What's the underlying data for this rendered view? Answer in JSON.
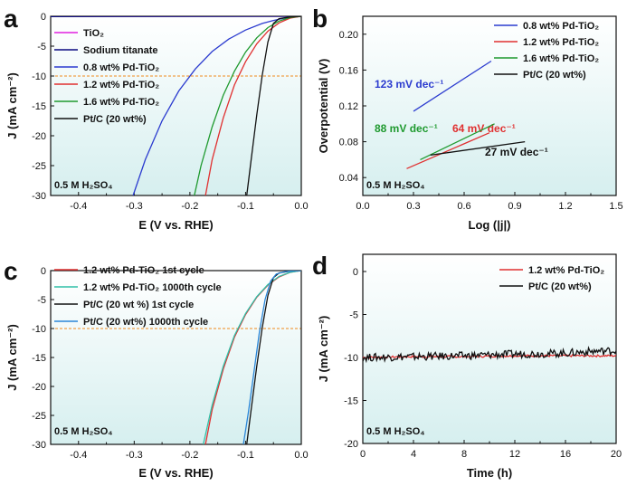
{
  "chart_data": [
    {
      "panel": "a",
      "type": "line",
      "xlabel": "E (V vs. RHE)",
      "ylabel": "J (mA cm⁻²)",
      "xlim": [
        -0.45,
        0.0
      ],
      "ylim": [
        -30,
        0
      ],
      "xticks": [
        "-0.4",
        "-0.3",
        "-0.2",
        "-0.1",
        "0.0"
      ],
      "yticks": [
        "0",
        "-5",
        "-10",
        "-15",
        "-20",
        "-25",
        "-30"
      ],
      "reference_line_y": -10,
      "annotation": "0.5 M H₂SO₄",
      "legend_position": "top-left",
      "series": [
        {
          "name": "TiO₂",
          "color": "#e020e0",
          "x": [
            -0.45,
            0.0
          ],
          "y": [
            -0.02,
            0.0
          ]
        },
        {
          "name": "Sodium titanate",
          "color": "#0a0a80",
          "x": [
            -0.45,
            0.0
          ],
          "y": [
            -0.04,
            0.0
          ]
        },
        {
          "name": "0.8 wt% Pd-TiO₂",
          "color": "#2b3bcf",
          "x": [
            -0.302,
            -0.28,
            -0.25,
            -0.22,
            -0.19,
            -0.16,
            -0.13,
            -0.1,
            -0.07,
            -0.05,
            -0.03,
            -0.01,
            0.0
          ],
          "y": [
            -30,
            -24,
            -17.5,
            -12.5,
            -8.8,
            -5.9,
            -3.8,
            -2.3,
            -1.2,
            -0.7,
            -0.3,
            -0.1,
            0.0
          ]
        },
        {
          "name": "1.2 wt% Pd-TiO₂",
          "color": "#e03030",
          "x": [
            -0.172,
            -0.16,
            -0.14,
            -0.12,
            -0.1,
            -0.08,
            -0.06,
            -0.04,
            -0.02,
            0.0
          ],
          "y": [
            -30,
            -24,
            -17,
            -11.5,
            -7.6,
            -4.6,
            -2.5,
            -1.1,
            -0.3,
            0.0
          ]
        },
        {
          "name": "1.6 wt% Pd-TiO₂",
          "color": "#1f9a2f",
          "x": [
            -0.192,
            -0.18,
            -0.16,
            -0.14,
            -0.12,
            -0.1,
            -0.08,
            -0.06,
            -0.04,
            -0.02,
            0.0
          ],
          "y": [
            -30,
            -25,
            -18.5,
            -13.2,
            -9.2,
            -6.0,
            -3.6,
            -1.9,
            -0.8,
            -0.2,
            0.0
          ]
        },
        {
          "name": "Pt/C (20 wt%)",
          "color": "#111111",
          "x": [
            -0.098,
            -0.09,
            -0.08,
            -0.07,
            -0.06,
            -0.05,
            -0.04,
            -0.02,
            0.0
          ],
          "y": [
            -30,
            -24,
            -16.5,
            -9.8,
            -4.3,
            -1.2,
            -0.4,
            -0.1,
            0.0
          ]
        }
      ]
    },
    {
      "panel": "b",
      "type": "line",
      "xlabel": "Log (|j|)",
      "ylabel": "Overpotential (V)",
      "xlim": [
        0.0,
        1.5
      ],
      "ylim": [
        0.02,
        0.22
      ],
      "xticks": [
        "0.0",
        "0.3",
        "0.6",
        "0.9",
        "1.2",
        "1.5"
      ],
      "yticks": [
        "0.04",
        "0.08",
        "0.12",
        "0.16",
        "0.20"
      ],
      "annotation": "0.5 M H₂SO₄",
      "legend_position": "top-right",
      "series": [
        {
          "name": "0.8 wt% Pd-TiO₂",
          "color": "#2b3bcf",
          "x": [
            0.3,
            0.76
          ],
          "y": [
            0.114,
            0.17
          ],
          "tafel_label": "123 mV dec⁻¹"
        },
        {
          "name": "1.2 wt% Pd-TiO₂",
          "color": "#e03030",
          "x": [
            0.26,
            0.75
          ],
          "y": [
            0.05,
            0.09
          ],
          "tafel_label": "64 mV dec⁻¹"
        },
        {
          "name": "1.6 wt% Pd-TiO₂",
          "color": "#1f9a2f",
          "x": [
            0.34,
            0.78
          ],
          "y": [
            0.06,
            0.1
          ],
          "tafel_label": "88 mV dec⁻¹"
        },
        {
          "name": "Pt/C (20 wt%)",
          "color": "#111111",
          "x": [
            0.4,
            0.96
          ],
          "y": [
            0.065,
            0.08
          ],
          "tafel_label": "27 mV dec⁻¹"
        }
      ]
    },
    {
      "panel": "c",
      "type": "line",
      "xlabel": "E (V vs. RHE)",
      "ylabel": "J (mA cm⁻²)",
      "xlim": [
        -0.45,
        0.0
      ],
      "ylim": [
        -30,
        0
      ],
      "xticks": [
        "-0.4",
        "-0.3",
        "-0.2",
        "-0.1",
        "0.0"
      ],
      "yticks": [
        "0",
        "-5",
        "-10",
        "-15",
        "-20",
        "-25",
        "-30"
      ],
      "reference_line_y": -10,
      "annotation": "0.5 M H₂SO₄",
      "legend_position": "top-left",
      "series": [
        {
          "name": "1.2 wt% Pd-TiO₂ 1st cycle",
          "color": "#e03030",
          "x": [
            -0.172,
            -0.16,
            -0.14,
            -0.12,
            -0.1,
            -0.08,
            -0.06,
            -0.04,
            -0.02,
            0.0
          ],
          "y": [
            -30,
            -24,
            -17,
            -11.5,
            -7.6,
            -4.6,
            -2.5,
            -1.1,
            -0.3,
            0.0
          ]
        },
        {
          "name": "1.2 wt% Pd-TiO₂ 1000th cycle",
          "color": "#2fc0a8",
          "x": [
            -0.176,
            -0.16,
            -0.14,
            -0.12,
            -0.1,
            -0.08,
            -0.06,
            -0.04,
            -0.02,
            0.0
          ],
          "y": [
            -30,
            -23.2,
            -16.5,
            -11.2,
            -7.4,
            -4.5,
            -2.4,
            -1.0,
            -0.3,
            0.0
          ]
        },
        {
          "name": "Pt/C (20 wt %) 1st cycle",
          "color": "#111111",
          "x": [
            -0.098,
            -0.09,
            -0.08,
            -0.07,
            -0.06,
            -0.05,
            -0.04,
            -0.02,
            0.0
          ],
          "y": [
            -30,
            -24,
            -16.5,
            -9.8,
            -4.3,
            -1.2,
            -0.4,
            -0.1,
            0.0
          ]
        },
        {
          "name": "Pt/C (20 wt%) 1000th cycle",
          "color": "#2a86d8",
          "x": [
            -0.104,
            -0.095,
            -0.085,
            -0.075,
            -0.065,
            -0.055,
            -0.045,
            -0.03,
            -0.015,
            0.0
          ],
          "y": [
            -30,
            -24.5,
            -17.5,
            -10.5,
            -5.0,
            -1.8,
            -0.6,
            -0.2,
            -0.05,
            0.0
          ]
        }
      ]
    },
    {
      "panel": "d",
      "type": "line",
      "xlabel": "Time (h)",
      "ylabel": "J (mA cm⁻²)",
      "xlim": [
        0,
        20
      ],
      "ylim": [
        -20,
        2
      ],
      "xticks": [
        "0",
        "4",
        "8",
        "12",
        "16",
        "20"
      ],
      "yticks": [
        "0",
        "-5",
        "-10",
        "-15",
        "-20"
      ],
      "annotation": "0.5 M H₂SO₄",
      "legend_position": "top-right",
      "series": [
        {
          "name": "1.2 wt% Pd-TiO₂",
          "color": "#e03030",
          "x": [
            0,
            4,
            8,
            12,
            16,
            20
          ],
          "y": [
            -10.0,
            -9.9,
            -9.9,
            -9.8,
            -9.8,
            -9.8
          ]
        },
        {
          "name": "Pt/C (20 wt%)",
          "color": "#111111",
          "x": [
            0,
            4,
            8,
            12,
            16,
            18,
            20
          ],
          "y": [
            -10.0,
            -9.9,
            -9.8,
            -9.6,
            -9.5,
            -9.3,
            -9.2
          ]
        }
      ]
    }
  ],
  "panel_letters": [
    "a",
    "b",
    "c",
    "d"
  ]
}
